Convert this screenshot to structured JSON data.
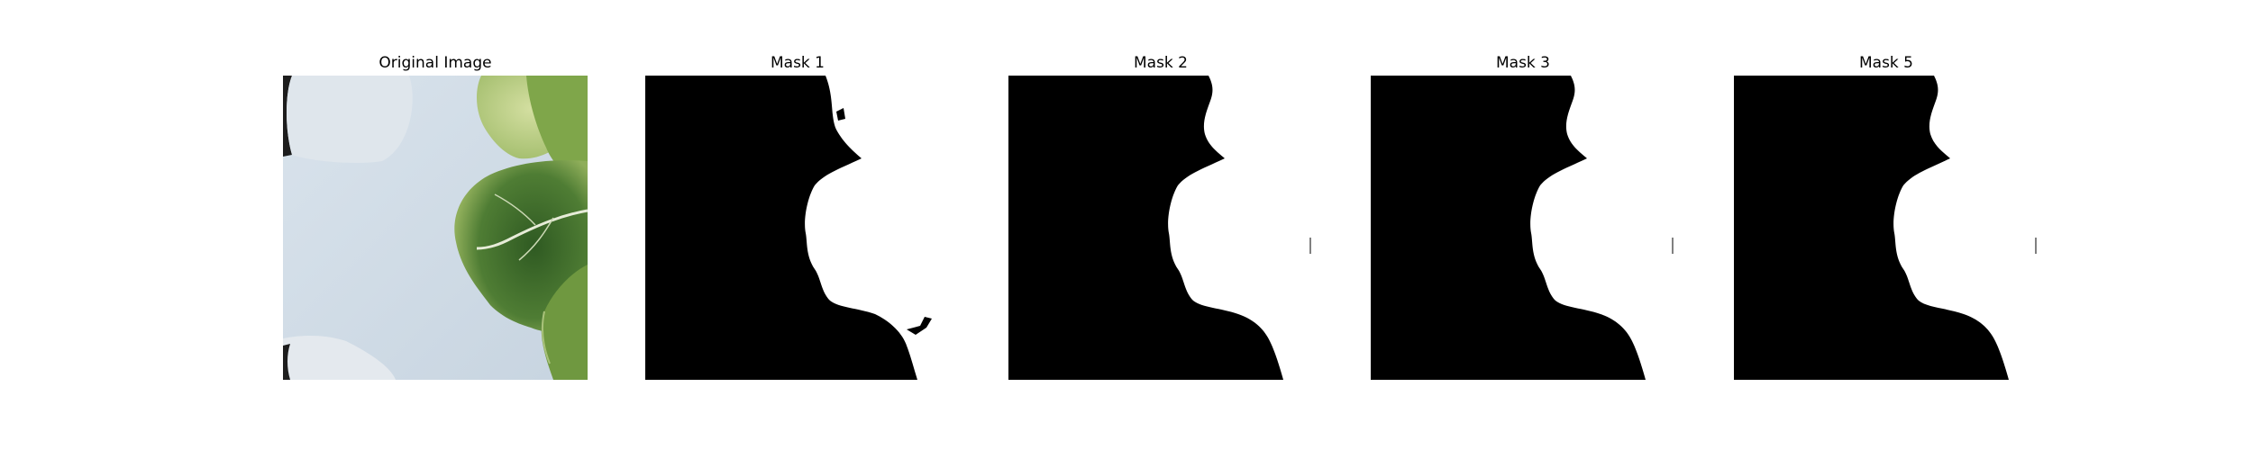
{
  "figure": {
    "panels": [
      {
        "title": "Original Image",
        "kind": "photo"
      },
      {
        "title": "Mask 1",
        "kind": "mask"
      },
      {
        "title": "Mask 2",
        "kind": "mask"
      },
      {
        "title": "Mask 3",
        "kind": "mask"
      },
      {
        "title": "Mask 5",
        "kind": "mask"
      }
    ]
  },
  "colors": {
    "background": "#ffffff",
    "mask_fill": "#000000",
    "mask_foreground": "#ffffff",
    "tray": "#cfdbe6",
    "leaf_dark": "#4f7d34",
    "leaf_light": "#b7cc88"
  }
}
